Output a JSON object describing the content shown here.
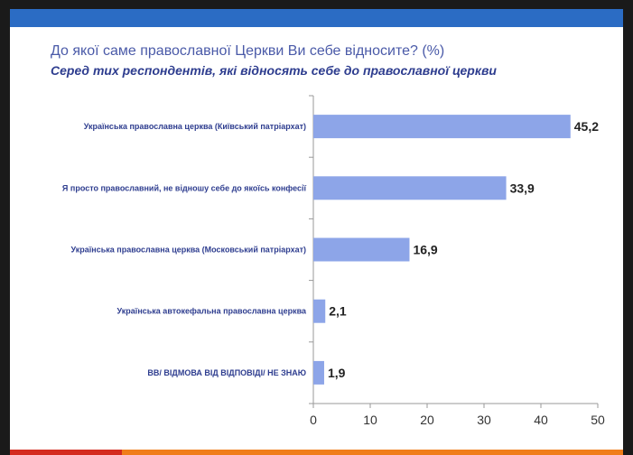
{
  "title": "До якої саме православної Церкви Ви себе відносите? (%)",
  "subtitle": "Серед тих респондентів, які відносять себе до православної церкви",
  "colors": {
    "bar": "#8da5e8",
    "header": "#2b6cc4",
    "bottom_left": "#d42a1e",
    "bottom_right": "#f07d1a"
  },
  "chart_data": {
    "type": "bar",
    "orientation": "horizontal",
    "categories": [
      "Українська православна церква (Київський патріархат)",
      "Я просто православний, не відношу себе до якоїсь конфесії",
      "Українська православна церква (Московський патріархат)",
      "Українська автокефальна православна церква",
      "ВВ/ ВІДМОВА ВІД ВІДПОВІДІ/ НЕ ЗНАЮ"
    ],
    "values": [
      45.2,
      33.9,
      16.9,
      2.1,
      1.9
    ],
    "value_labels": [
      "45,2",
      "33,9",
      "16,9",
      "2,1",
      "1,9"
    ],
    "xlim": [
      0,
      50
    ],
    "xticks": [
      "0",
      "10",
      "20",
      "30",
      "40",
      "50"
    ],
    "grid": false,
    "legend": "none"
  }
}
